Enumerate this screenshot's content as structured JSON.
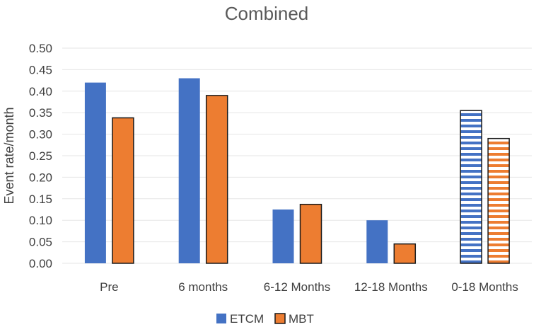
{
  "chart_data": {
    "type": "bar",
    "title": "Combined",
    "xlabel": "",
    "ylabel": "Event rate/month",
    "categories": [
      "Pre",
      "6 months",
      "6-12 Months",
      "12-18 Months",
      "0-18 Months"
    ],
    "series": [
      {
        "name": "ETCM",
        "values": [
          0.42,
          0.43,
          0.125,
          0.1,
          0.355
        ]
      },
      {
        "name": "MBT",
        "values": [
          0.338,
          0.39,
          0.137,
          0.045,
          0.29
        ]
      }
    ],
    "ylim": [
      0,
      0.5
    ],
    "yticks": [
      "0.00",
      "0.05",
      "0.10",
      "0.15",
      "0.20",
      "0.25",
      "0.30",
      "0.35",
      "0.40",
      "0.45",
      "0.50"
    ],
    "grid": true,
    "legend_position": "bottom",
    "hatched_categories": [
      "0-18 Months"
    ],
    "colors": {
      "ETCM": "#4472c4",
      "MBT": "#ed7d31",
      "outline": "#1a1a1a",
      "grid": "#e6e6e6",
      "text": "#404040"
    }
  }
}
